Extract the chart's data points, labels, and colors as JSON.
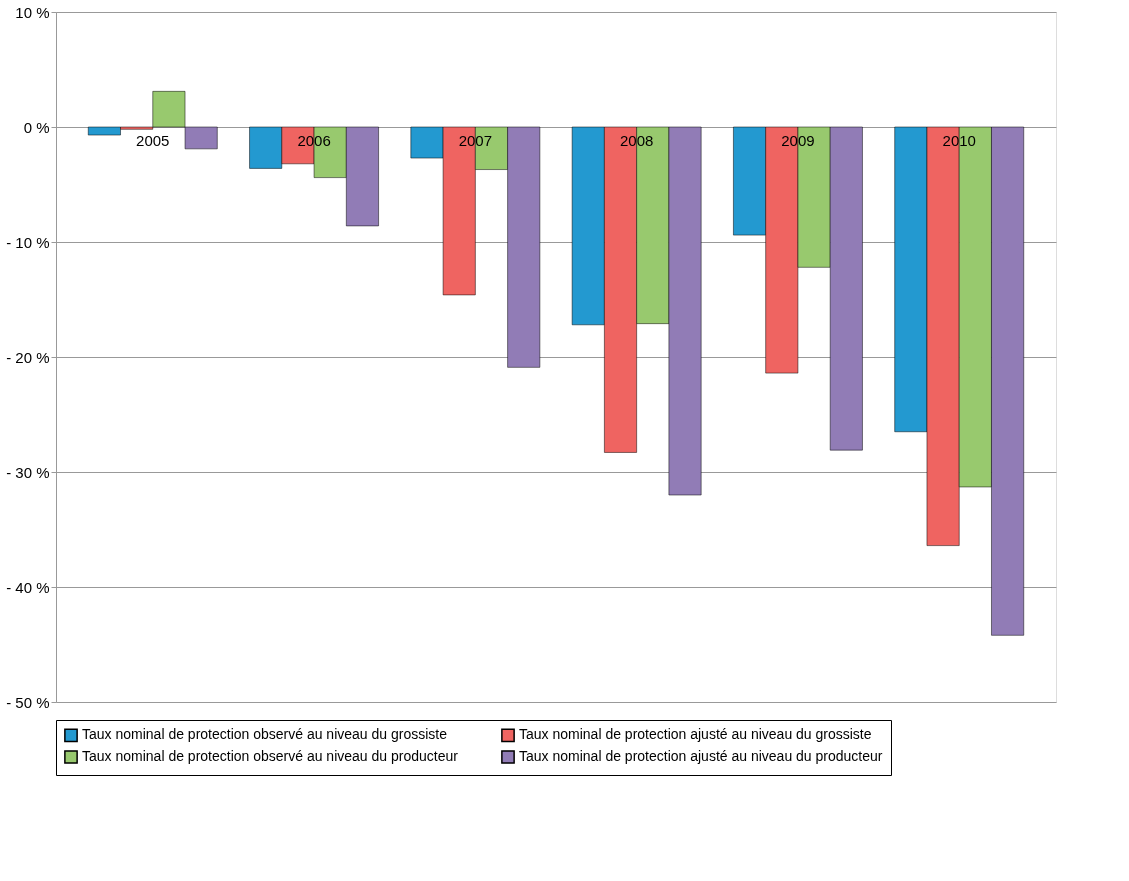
{
  "chart_data": {
    "type": "bar",
    "categories": [
      "2005",
      "2006",
      "2007",
      "2008",
      "2009",
      "2010"
    ],
    "series": [
      {
        "name": "Taux nominal de protection observé au niveau du grossiste",
        "color": "#2399d0",
        "values": [
          -0.7,
          -3.6,
          -2.7,
          -17.2,
          -9.4,
          -26.5
        ]
      },
      {
        "name": "Taux nominal de protection ajusté au niveau du grossiste",
        "color": "#ef6461",
        "values": [
          -0.2,
          -3.2,
          -14.6,
          -28.3,
          -21.4,
          -36.4
        ]
      },
      {
        "name": "Taux nominal de protection observé au niveau du producteur",
        "color": "#98c96e",
        "values": [
          3.1,
          -4.4,
          -3.7,
          -17.1,
          -12.2,
          -31.3
        ]
      },
      {
        "name": "Taux nominal de protection ajusté au niveau du producteur",
        "color": "#917cb6",
        "values": [
          -1.9,
          -8.6,
          -20.9,
          -32.0,
          -28.1,
          -44.2
        ]
      }
    ],
    "ylim": [
      -50,
      10
    ],
    "yticks": [
      {
        "value": -50,
        "label": "- 50 %"
      },
      {
        "value": -40,
        "label": "- 40 %"
      },
      {
        "value": -30,
        "label": "- 30 %"
      },
      {
        "value": -20,
        "label": "- 20 %"
      },
      {
        "value": -10,
        "label": "- 10 %"
      },
      {
        "value": 0,
        "label": "0 %"
      },
      {
        "value": 10,
        "label": "10 %"
      }
    ],
    "grid": "y",
    "legend": "bottom"
  }
}
